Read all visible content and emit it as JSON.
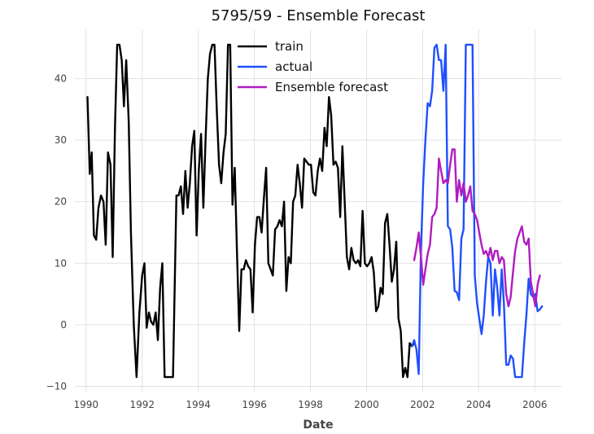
{
  "chart_data": {
    "type": "line",
    "title": "5795/59 - Ensemble Forecast",
    "xlabel": "Date",
    "ylabel": "",
    "xlim": [
      1989.6,
      2006.95
    ],
    "ylim": [
      -11,
      48
    ],
    "xticks": [
      1990,
      1992,
      1994,
      1996,
      1998,
      2000,
      2002,
      2004,
      2006
    ],
    "yticks": [
      -10,
      0,
      10,
      20,
      30,
      40
    ],
    "grid": true,
    "legend_position": "top-center",
    "series": [
      {
        "name": "train",
        "color": "#000000",
        "points": [
          [
            1990.05,
            37
          ],
          [
            1990.13,
            24.5
          ],
          [
            1990.2,
            28
          ],
          [
            1990.28,
            14.5
          ],
          [
            1990.36,
            13.8
          ],
          [
            1990.44,
            19
          ],
          [
            1990.53,
            21
          ],
          [
            1990.62,
            20
          ],
          [
            1990.7,
            13
          ],
          [
            1990.78,
            28
          ],
          [
            1990.87,
            26
          ],
          [
            1990.95,
            11
          ],
          [
            1991.03,
            32
          ],
          [
            1991.11,
            45.5
          ],
          [
            1991.19,
            45.5
          ],
          [
            1991.27,
            43
          ],
          [
            1991.35,
            35.5
          ],
          [
            1991.43,
            43
          ],
          [
            1991.52,
            33
          ],
          [
            1991.6,
            15
          ],
          [
            1991.7,
            0
          ],
          [
            1991.8,
            -8.5
          ],
          [
            1991.9,
            2
          ],
          [
            1992.0,
            8
          ],
          [
            1992.08,
            10
          ],
          [
            1992.16,
            -0.5
          ],
          [
            1992.24,
            2
          ],
          [
            1992.32,
            0.5
          ],
          [
            1992.4,
            0
          ],
          [
            1992.48,
            2
          ],
          [
            1992.56,
            -2.5
          ],
          [
            1992.64,
            6
          ],
          [
            1992.72,
            10
          ],
          [
            1992.8,
            -8.5
          ],
          [
            1993.0,
            -8.5
          ],
          [
            1993.1,
            -8.5
          ],
          [
            1993.22,
            21
          ],
          [
            1993.3,
            21
          ],
          [
            1993.38,
            22.5
          ],
          [
            1993.46,
            18
          ],
          [
            1993.54,
            25
          ],
          [
            1993.62,
            19
          ],
          [
            1993.7,
            23
          ],
          [
            1993.78,
            29
          ],
          [
            1993.86,
            31.5
          ],
          [
            1993.94,
            14.5
          ],
          [
            1994.02,
            25
          ],
          [
            1994.1,
            31
          ],
          [
            1994.18,
            19
          ],
          [
            1994.26,
            30
          ],
          [
            1994.34,
            40
          ],
          [
            1994.42,
            44
          ],
          [
            1994.5,
            45.5
          ],
          [
            1994.58,
            45.5
          ],
          [
            1994.66,
            35
          ],
          [
            1994.74,
            26
          ],
          [
            1994.82,
            23
          ],
          [
            1994.9,
            28
          ],
          [
            1994.98,
            31
          ],
          [
            1995.06,
            45.5
          ],
          [
            1995.14,
            45.5
          ],
          [
            1995.22,
            19.5
          ],
          [
            1995.3,
            25.5
          ],
          [
            1995.38,
            12
          ],
          [
            1995.46,
            -1
          ],
          [
            1995.54,
            9
          ],
          [
            1995.62,
            9
          ],
          [
            1995.7,
            10.5
          ],
          [
            1995.78,
            9.5
          ],
          [
            1995.86,
            9
          ],
          [
            1995.94,
            2
          ],
          [
            1996.02,
            13
          ],
          [
            1996.1,
            17.5
          ],
          [
            1996.18,
            17.5
          ],
          [
            1996.26,
            15
          ],
          [
            1996.34,
            20.5
          ],
          [
            1996.42,
            25.5
          ],
          [
            1996.5,
            10
          ],
          [
            1996.58,
            9
          ],
          [
            1996.66,
            8
          ],
          [
            1996.74,
            15.5
          ],
          [
            1996.82,
            16
          ],
          [
            1996.9,
            17
          ],
          [
            1996.98,
            16
          ],
          [
            1997.06,
            20
          ],
          [
            1997.14,
            5.5
          ],
          [
            1997.22,
            11
          ],
          [
            1997.3,
            10
          ],
          [
            1997.38,
            20
          ],
          [
            1997.46,
            21
          ],
          [
            1997.54,
            26
          ],
          [
            1997.62,
            23
          ],
          [
            1997.7,
            19
          ],
          [
            1997.78,
            27
          ],
          [
            1997.86,
            26.5
          ],
          [
            1997.94,
            26
          ],
          [
            1998.02,
            26
          ],
          [
            1998.1,
            21.5
          ],
          [
            1998.18,
            21
          ],
          [
            1998.26,
            25
          ],
          [
            1998.34,
            27
          ],
          [
            1998.42,
            25
          ],
          [
            1998.5,
            32
          ],
          [
            1998.58,
            29
          ],
          [
            1998.66,
            37
          ],
          [
            1998.74,
            34
          ],
          [
            1998.82,
            26
          ],
          [
            1998.9,
            26.5
          ],
          [
            1998.98,
            25.5
          ],
          [
            1999.06,
            17.5
          ],
          [
            1999.14,
            29
          ],
          [
            1999.22,
            20
          ],
          [
            1999.3,
            11
          ],
          [
            1999.38,
            9
          ],
          [
            1999.46,
            12.5
          ],
          [
            1999.54,
            10.5
          ],
          [
            1999.62,
            10
          ],
          [
            1999.7,
            10.5
          ],
          [
            1999.78,
            9.5
          ],
          [
            1999.86,
            18.5
          ],
          [
            1999.94,
            10
          ],
          [
            2000.02,
            9.5
          ],
          [
            2000.1,
            10
          ],
          [
            2000.18,
            11
          ],
          [
            2000.26,
            8.5
          ],
          [
            2000.34,
            2.2
          ],
          [
            2000.42,
            3
          ],
          [
            2000.5,
            6
          ],
          [
            2000.58,
            5
          ],
          [
            2000.66,
            16.5
          ],
          [
            2000.74,
            18
          ],
          [
            2000.82,
            13
          ],
          [
            2000.9,
            7
          ],
          [
            2000.98,
            9
          ],
          [
            2001.06,
            13.5
          ],
          [
            2001.14,
            1
          ],
          [
            2001.22,
            -1
          ],
          [
            2001.3,
            -8.5
          ],
          [
            2001.38,
            -7
          ],
          [
            2001.46,
            -8.5
          ],
          [
            2001.54,
            -3
          ],
          [
            2001.62,
            -3.5
          ],
          [
            2001.7,
            -3
          ]
        ]
      },
      {
        "name": "actual",
        "color": "#1f4fff",
        "points": [
          [
            2001.62,
            -3.5
          ],
          [
            2001.7,
            -2.5
          ],
          [
            2001.78,
            -4
          ],
          [
            2001.86,
            -8
          ],
          [
            2001.94,
            12
          ],
          [
            2002.02,
            23
          ],
          [
            2002.1,
            30
          ],
          [
            2002.18,
            36
          ],
          [
            2002.26,
            35.5
          ],
          [
            2002.34,
            38
          ],
          [
            2002.42,
            45
          ],
          [
            2002.5,
            45.5
          ],
          [
            2002.58,
            43
          ],
          [
            2002.66,
            43
          ],
          [
            2002.74,
            38
          ],
          [
            2002.82,
            45.5
          ],
          [
            2002.9,
            16
          ],
          [
            2002.98,
            15.5
          ],
          [
            2003.06,
            12.5
          ],
          [
            2003.14,
            5.5
          ],
          [
            2003.22,
            5.3
          ],
          [
            2003.3,
            4
          ],
          [
            2003.38,
            14
          ],
          [
            2003.46,
            15.5
          ],
          [
            2003.54,
            45.5
          ],
          [
            2003.62,
            45.5
          ],
          [
            2003.7,
            45.5
          ],
          [
            2003.78,
            45.5
          ],
          [
            2003.86,
            8
          ],
          [
            2003.94,
            3.5
          ],
          [
            2004.02,
            1
          ],
          [
            2004.1,
            -1.5
          ],
          [
            2004.18,
            1.5
          ],
          [
            2004.26,
            7
          ],
          [
            2004.34,
            11
          ],
          [
            2004.42,
            10
          ],
          [
            2004.5,
            1.5
          ],
          [
            2004.58,
            9
          ],
          [
            2004.66,
            6
          ],
          [
            2004.74,
            1.5
          ],
          [
            2004.82,
            9
          ],
          [
            2004.9,
            3.5
          ],
          [
            2004.98,
            -6.5
          ],
          [
            2005.06,
            -6.5
          ],
          [
            2005.14,
            -5
          ],
          [
            2005.22,
            -5.5
          ],
          [
            2005.3,
            -8.5
          ],
          [
            2005.38,
            -8.5
          ],
          [
            2005.46,
            -8.5
          ],
          [
            2005.54,
            -8.5
          ],
          [
            2005.62,
            -3
          ],
          [
            2005.7,
            1.5
          ],
          [
            2005.78,
            7.5
          ],
          [
            2005.86,
            5
          ],
          [
            2005.94,
            4.5
          ],
          [
            2006.02,
            5
          ],
          [
            2006.1,
            2.2
          ],
          [
            2006.18,
            2.5
          ],
          [
            2006.26,
            3
          ]
        ]
      },
      {
        "name": "Ensemble forecast",
        "color": "#b01cc0",
        "points": [
          [
            2001.7,
            10.5
          ],
          [
            2001.78,
            12.5
          ],
          [
            2001.86,
            15
          ],
          [
            2001.94,
            11
          ],
          [
            2002.02,
            6.5
          ],
          [
            2002.1,
            9
          ],
          [
            2002.18,
            11.5
          ],
          [
            2002.26,
            13
          ],
          [
            2002.34,
            17.5
          ],
          [
            2002.42,
            18
          ],
          [
            2002.5,
            19
          ],
          [
            2002.58,
            27
          ],
          [
            2002.66,
            25
          ],
          [
            2002.74,
            23
          ],
          [
            2002.82,
            23.5
          ],
          [
            2002.9,
            23
          ],
          [
            2002.98,
            26
          ],
          [
            2003.06,
            28.5
          ],
          [
            2003.14,
            28.5
          ],
          [
            2003.22,
            20
          ],
          [
            2003.3,
            23.5
          ],
          [
            2003.38,
            21
          ],
          [
            2003.46,
            23
          ],
          [
            2003.54,
            20
          ],
          [
            2003.62,
            21
          ],
          [
            2003.7,
            22.5
          ],
          [
            2003.78,
            18.5
          ],
          [
            2003.86,
            18
          ],
          [
            2003.94,
            17
          ],
          [
            2004.02,
            15
          ],
          [
            2004.1,
            13
          ],
          [
            2004.18,
            11.5
          ],
          [
            2004.26,
            12
          ],
          [
            2004.34,
            11
          ],
          [
            2004.42,
            12.5
          ],
          [
            2004.5,
            10.5
          ],
          [
            2004.58,
            12
          ],
          [
            2004.66,
            12
          ],
          [
            2004.74,
            10
          ],
          [
            2004.82,
            11
          ],
          [
            2004.9,
            10.5
          ],
          [
            2004.98,
            5
          ],
          [
            2005.06,
            3
          ],
          [
            2005.14,
            4.5
          ],
          [
            2005.22,
            8.5
          ],
          [
            2005.3,
            12
          ],
          [
            2005.38,
            14
          ],
          [
            2005.46,
            15
          ],
          [
            2005.54,
            16
          ],
          [
            2005.62,
            13.5
          ],
          [
            2005.7,
            13
          ],
          [
            2005.78,
            14
          ],
          [
            2005.86,
            7
          ],
          [
            2005.94,
            5
          ],
          [
            2006.02,
            3
          ],
          [
            2006.1,
            6.5
          ],
          [
            2006.18,
            8
          ]
        ]
      }
    ]
  }
}
